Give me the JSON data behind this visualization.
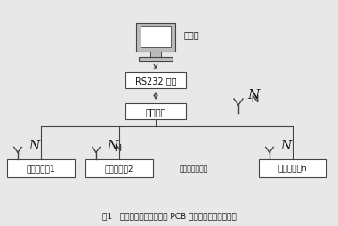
{
  "title_caption": "图1   基于无线传感器网络的 PCB 电镀电流监测系统框架",
  "label_computer": "计算机",
  "label_rs232": "RS232 转换",
  "label_hub": "汇聚节点",
  "label_sensor1": "传感器节点1",
  "label_sensor2": "传感器节点2",
  "label_sensorn": "传感器节点n",
  "label_dots": "。。。。。。。",
  "bg_color": "#e8e8e8",
  "box_color": "#ffffff",
  "line_color": "#444444",
  "font_color": "#111111"
}
